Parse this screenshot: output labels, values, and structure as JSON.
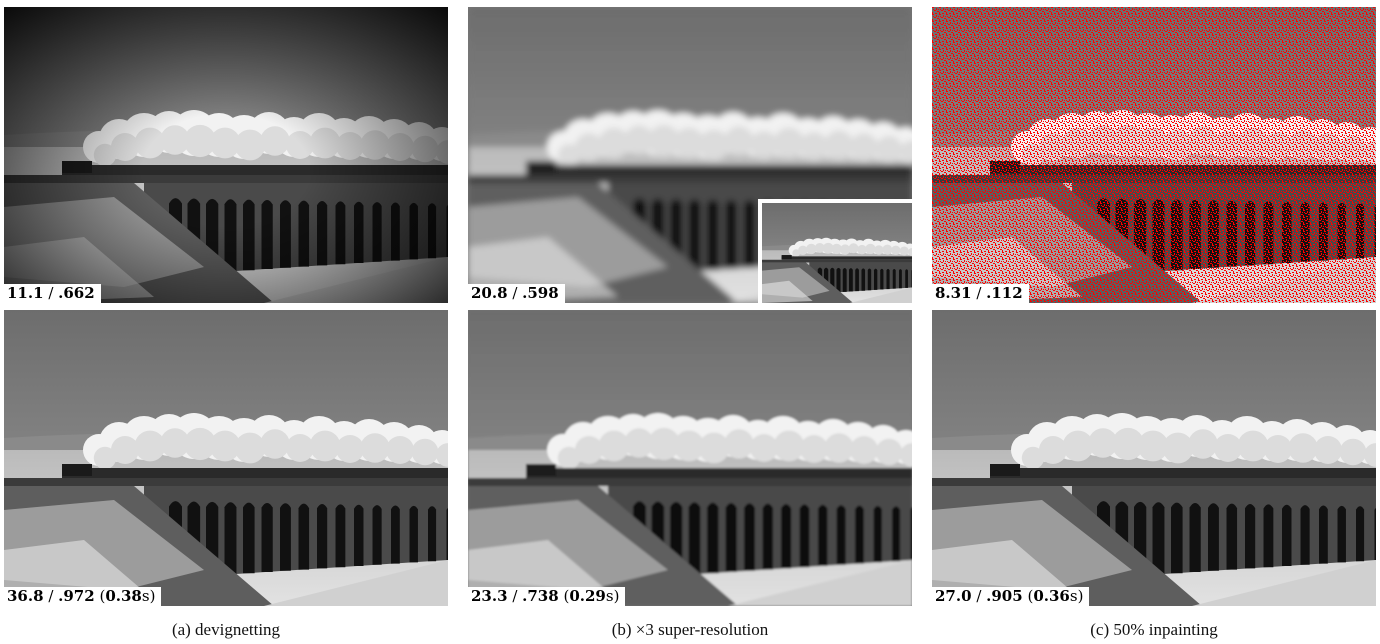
{
  "figure": {
    "columns": [
      {
        "caption": "(a) devignetting",
        "top_metric": {
          "psnr": "11.1",
          "ssim": ".662"
        },
        "bottom_metric": {
          "psnr": "36.8",
          "ssim": ".972",
          "time": "0.38"
        }
      },
      {
        "caption": "(b) ×3 super-resolution",
        "top_metric": {
          "psnr": "20.8",
          "ssim": ".598"
        },
        "bottom_metric": {
          "psnr": "23.3",
          "ssim": ".738",
          "time": "0.29"
        }
      },
      {
        "caption": "(c) 50% inpainting",
        "top_metric": {
          "psnr": "8.31",
          "ssim": ".112"
        },
        "bottom_metric": {
          "psnr": "27.0",
          "ssim": ".905",
          "time": "0.36"
        }
      }
    ],
    "separator": " / ",
    "time_unit": "s",
    "colors": {
      "inpainting_mask": "#ff0000",
      "label_background": "#ffffff"
    }
  }
}
